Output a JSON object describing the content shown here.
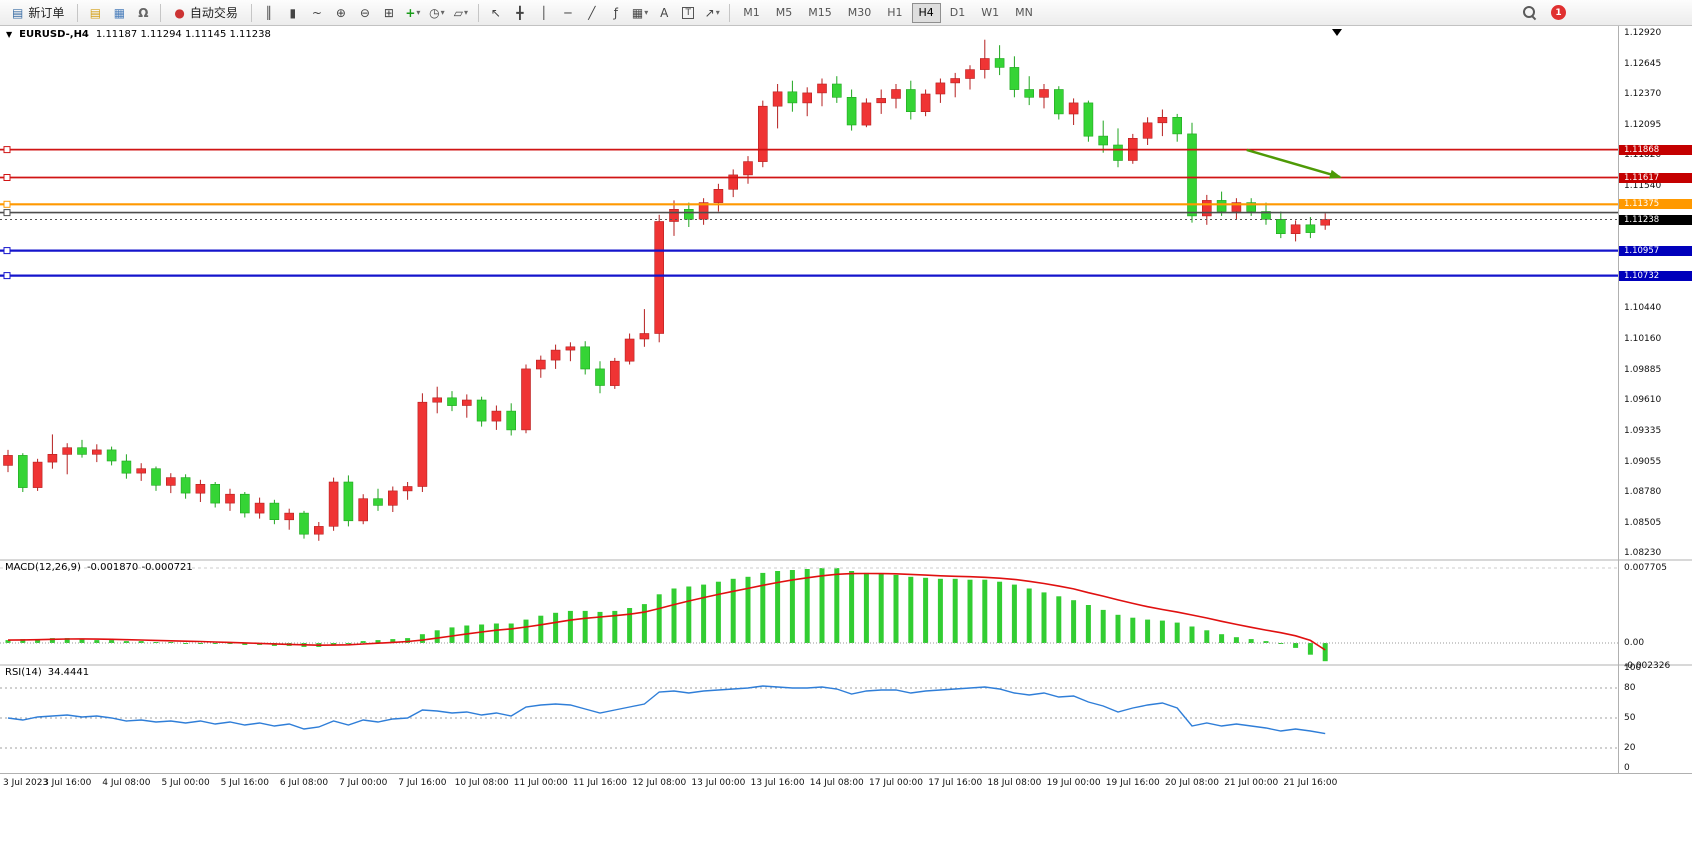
{
  "toolbar": {
    "new_order": {
      "label": "新订单",
      "icon": {
        "name": "new-order-icon",
        "glyph": "▤",
        "color": "#3b6ea5"
      }
    },
    "autotrade": {
      "label": "自动交易",
      "icon": {
        "name": "autotrade-icon",
        "glyph": "●",
        "color": "#cc3333"
      }
    },
    "window_icons": [
      {
        "name": "charts-icon",
        "glyph": "▤",
        "color": "#d4a017"
      },
      {
        "name": "data-window-icon",
        "glyph": "▦",
        "color": "#4a7ebb"
      },
      {
        "name": "support-icon",
        "glyph": "Ω",
        "color": "#666666"
      }
    ],
    "chart_tools": [
      {
        "name": "bar-chart-icon",
        "glyph": "║"
      },
      {
        "name": "candlestick-chart-icon",
        "glyph": "▮"
      },
      {
        "name": "line-chart-icon",
        "glyph": "~"
      },
      {
        "name": "zoom-in-icon",
        "glyph": "⊕"
      },
      {
        "name": "zoom-out-icon",
        "glyph": "⊖"
      },
      {
        "name": "tile-windows-icon",
        "glyph": "⊞"
      },
      {
        "name": "indicators-icon",
        "glyph": "+",
        "color": "#1a9c1a",
        "caret": true
      },
      {
        "name": "periods-icon",
        "glyph": "◷",
        "caret": true
      },
      {
        "name": "templates-icon",
        "glyph": "▱",
        "caret": true
      }
    ],
    "drawing_tools": [
      {
        "name": "cursor-icon",
        "glyph": "↖"
      },
      {
        "name": "crosshair-icon",
        "glyph": "╋"
      },
      {
        "name": "vertical-line-tool-icon",
        "glyph": "│"
      },
      {
        "name": "horizontal-line-tool-icon",
        "glyph": "─"
      },
      {
        "name": "trendline-tool-icon",
        "glyph": "╱"
      },
      {
        "name": "fibonacci-tool-icon",
        "glyph": "ƒ"
      },
      {
        "name": "shapes-tool-icon",
        "glyph": "▦",
        "caret": true
      },
      {
        "name": "text-tool-icon",
        "glyph": "A"
      },
      {
        "name": "text-label-tool-icon",
        "glyph": "T",
        "boxed": true
      },
      {
        "name": "arrows-tool-icon",
        "glyph": "↗",
        "caret": true
      }
    ],
    "timeframes": [
      "M1",
      "M5",
      "M15",
      "M30",
      "H1",
      "H4",
      "D1",
      "W1",
      "MN"
    ],
    "active_timeframe": "H4",
    "notification_count": "1"
  },
  "chart": {
    "title": "EURUSD-,H4",
    "ohlc_text": "1.11187 1.11294 1.11145 1.11238"
  },
  "price_lines": [
    {
      "name": "red-resistance-line-1",
      "price": 1.11868,
      "color": "#d01414",
      "width": 1.8,
      "style": "solid",
      "handle": true,
      "tag": "1.11868",
      "tag_bg": "#c40000"
    },
    {
      "name": "red-resistance-line-2",
      "price": 1.11617,
      "color": "#d01414",
      "width": 1.8,
      "style": "solid",
      "handle": true,
      "tag": "1.11617",
      "tag_bg": "#c40000"
    },
    {
      "name": "orange-pivot-line",
      "price": 1.11375,
      "color": "#ff9900",
      "width": 2.2,
      "style": "solid",
      "handle": true,
      "tag": "1.11375",
      "tag_bg": "#ff9900"
    },
    {
      "name": "gray-support-line",
      "price": 1.113,
      "color": "#4d4d4d",
      "width": 1.6,
      "style": "solid",
      "handle": true,
      "tag": null
    },
    {
      "name": "bid-price-line",
      "price": 1.11238,
      "color": "#555555",
      "width": 1,
      "style": "dotted",
      "handle": false,
      "tag": "1.11238",
      "tag_bg": "#000000"
    },
    {
      "name": "blue-support-line-1",
      "price": 1.10957,
      "color": "#1414cc",
      "width": 2.2,
      "style": "solid",
      "handle": true,
      "tag": "1.10957",
      "tag_bg": "#0000bb"
    },
    {
      "name": "blue-support-line-2",
      "price": 1.10732,
      "color": "#1414cc",
      "width": 2.2,
      "style": "solid",
      "handle": true,
      "tag": "1.10732",
      "tag_bg": "#0000bb"
    }
  ],
  "annotations": [
    {
      "type": "arrow",
      "name": "down-trend-arrow",
      "color": "#4e9a06",
      "from_bar": 83.7,
      "from_price": 1.11865,
      "to_bar": 90,
      "to_price": 1.11621
    }
  ],
  "chart_data": [
    {
      "type": "candlestick",
      "symbol": "EURUSD-",
      "timeframe": "H4",
      "ylim": [
        1.0823,
        1.1292
      ],
      "colors": {
        "up": "#ef3434",
        "up_edge": "#b51f1f",
        "down": "#35d435",
        "down_edge": "#1fa51f"
      },
      "axis_ticks": [
        "1.12920",
        "1.12645",
        "1.12370",
        "1.12095",
        "1.11820",
        "1.11540",
        "1.10440",
        "1.10160",
        "1.09885",
        "1.09610",
        "1.09335",
        "1.09055",
        "1.08780",
        "1.08505",
        "1.08230"
      ],
      "label_every": 4,
      "time_labels": [
        "3 Jul 2023",
        "3 Jul 16:00",
        "4 Jul 08:00",
        "5 Jul 00:00",
        "5 Jul 16:00",
        "6 Jul 08:00",
        "7 Jul 00:00",
        "7 Jul 16:00",
        "10 Jul 08:00",
        "11 Jul 00:00",
        "11 Jul 16:00",
        "12 Jul 08:00",
        "13 Jul 00:00",
        "13 Jul 16:00",
        "14 Jul 08:00",
        "17 Jul 00:00",
        "17 Jul 16:00",
        "18 Jul 08:00",
        "19 Jul 00:00",
        "19 Jul 16:00",
        "20 Jul 08:00",
        "21 Jul 00:00",
        "21 Jul 16:00"
      ],
      "ohlc": [
        [
          1.0902,
          1.0916,
          1.0896,
          1.0911
        ],
        [
          1.0911,
          1.0913,
          1.0878,
          1.0882
        ],
        [
          1.0882,
          1.0908,
          1.0879,
          1.0905
        ],
        [
          1.0905,
          1.093,
          1.0899,
          1.0912
        ],
        [
          1.0912,
          1.0922,
          1.0894,
          1.0918
        ],
        [
          1.0918,
          1.0925,
          1.0909,
          1.0912
        ],
        [
          1.0912,
          1.0921,
          1.0905,
          1.0916
        ],
        [
          1.0916,
          1.0919,
          1.0902,
          1.0906
        ],
        [
          1.0906,
          1.0912,
          1.089,
          1.0895
        ],
        [
          1.0895,
          1.0904,
          1.0888,
          1.0899
        ],
        [
          1.0899,
          1.0901,
          1.0879,
          1.0884
        ],
        [
          1.0884,
          1.0895,
          1.0877,
          1.0891
        ],
        [
          1.0891,
          1.0894,
          1.0872,
          1.0877
        ],
        [
          1.0877,
          1.0889,
          1.0869,
          1.0885
        ],
        [
          1.0885,
          1.0887,
          1.0864,
          1.0868
        ],
        [
          1.0868,
          1.0881,
          1.0861,
          1.0876
        ],
        [
          1.0876,
          1.0878,
          1.0855,
          1.0859
        ],
        [
          1.0859,
          1.0873,
          1.0854,
          1.0868
        ],
        [
          1.0868,
          1.0871,
          1.0849,
          1.0853
        ],
        [
          1.0853,
          1.0863,
          1.0844,
          1.0859
        ],
        [
          1.0859,
          1.0861,
          1.0836,
          1.084
        ],
        [
          1.084,
          1.0851,
          1.0834,
          1.0847
        ],
        [
          1.0847,
          1.0891,
          1.0843,
          1.0887
        ],
        [
          1.0887,
          1.0893,
          1.0847,
          1.0852
        ],
        [
          1.0852,
          1.0876,
          1.0849,
          1.0872
        ],
        [
          1.0872,
          1.0881,
          1.0861,
          1.0866
        ],
        [
          1.0866,
          1.0883,
          1.086,
          1.0879
        ],
        [
          1.0879,
          1.0887,
          1.0871,
          1.0883
        ],
        [
          1.0883,
          1.0967,
          1.0878,
          1.0959
        ],
        [
          1.0959,
          1.0973,
          1.0949,
          1.0963
        ],
        [
          1.0963,
          1.0969,
          1.0951,
          1.0956
        ],
        [
          1.0956,
          1.0966,
          1.0945,
          1.0961
        ],
        [
          1.0961,
          1.0964,
          1.0937,
          1.0942
        ],
        [
          1.0942,
          1.0956,
          1.0934,
          1.0951
        ],
        [
          1.0951,
          1.0958,
          1.0929,
          1.0934
        ],
        [
          1.0934,
          1.0993,
          1.0931,
          1.0989
        ],
        [
          1.0989,
          1.1001,
          1.0981,
          1.0997
        ],
        [
          1.0997,
          1.1011,
          1.0989,
          1.1006
        ],
        [
          1.1006,
          1.1013,
          1.0996,
          1.1009
        ],
        [
          1.1009,
          1.1014,
          1.0984,
          1.0989
        ],
        [
          1.0989,
          1.0996,
          1.0967,
          1.0974
        ],
        [
          1.0974,
          1.0999,
          1.0971,
          1.0996
        ],
        [
          1.0996,
          1.1021,
          1.0993,
          1.1016
        ],
        [
          1.1016,
          1.1043,
          1.1009,
          1.1021
        ],
        [
          1.1021,
          1.1128,
          1.1013,
          1.1122
        ],
        [
          1.1122,
          1.1141,
          1.1109,
          1.1133
        ],
        [
          1.1133,
          1.1139,
          1.1117,
          1.1124
        ],
        [
          1.1124,
          1.1143,
          1.1119,
          1.1139
        ],
        [
          1.1139,
          1.1156,
          1.1131,
          1.1151
        ],
        [
          1.1151,
          1.1169,
          1.1144,
          1.1164
        ],
        [
          1.1164,
          1.1181,
          1.1156,
          1.1176
        ],
        [
          1.1176,
          1.1231,
          1.1171,
          1.1226
        ],
        [
          1.1226,
          1.1246,
          1.1206,
          1.1239
        ],
        [
          1.1239,
          1.1249,
          1.1221,
          1.1229
        ],
        [
          1.1229,
          1.1243,
          1.1217,
          1.1238
        ],
        [
          1.1238,
          1.1251,
          1.1226,
          1.1246
        ],
        [
          1.1246,
          1.1253,
          1.1229,
          1.1234
        ],
        [
          1.1234,
          1.1241,
          1.1204,
          1.1209
        ],
        [
          1.1209,
          1.1233,
          1.1207,
          1.1229
        ],
        [
          1.1229,
          1.1241,
          1.1219,
          1.1233
        ],
        [
          1.1233,
          1.1246,
          1.1224,
          1.1241
        ],
        [
          1.1241,
          1.1249,
          1.1214,
          1.1221
        ],
        [
          1.1221,
          1.1241,
          1.1217,
          1.1237
        ],
        [
          1.1237,
          1.1251,
          1.1229,
          1.1247
        ],
        [
          1.1247,
          1.1256,
          1.1234,
          1.1251
        ],
        [
          1.1251,
          1.1263,
          1.1241,
          1.1259
        ],
        [
          1.1259,
          1.1286,
          1.1251,
          1.1269
        ],
        [
          1.1269,
          1.1281,
          1.1254,
          1.1261
        ],
        [
          1.1261,
          1.1271,
          1.1234,
          1.1241
        ],
        [
          1.1241,
          1.1253,
          1.1227,
          1.1234
        ],
        [
          1.1234,
          1.1246,
          1.1224,
          1.1241
        ],
        [
          1.1241,
          1.1244,
          1.1214,
          1.1219
        ],
        [
          1.1219,
          1.1233,
          1.1209,
          1.1229
        ],
        [
          1.1229,
          1.1231,
          1.1194,
          1.1199
        ],
        [
          1.1199,
          1.1213,
          1.1184,
          1.1191
        ],
        [
          1.1191,
          1.1206,
          1.1171,
          1.1177
        ],
        [
          1.1177,
          1.1201,
          1.1174,
          1.1197
        ],
        [
          1.1197,
          1.1216,
          1.1191,
          1.1211
        ],
        [
          1.1211,
          1.1223,
          1.1199,
          1.1216
        ],
        [
          1.1216,
          1.1219,
          1.1194,
          1.1201
        ],
        [
          1.1201,
          1.1211,
          1.1121,
          1.1127
        ],
        [
          1.1127,
          1.1146,
          1.1119,
          1.1141
        ],
        [
          1.1141,
          1.1149,
          1.1127,
          1.1131
        ],
        [
          1.1131,
          1.1143,
          1.1124,
          1.1139
        ],
        [
          1.1139,
          1.1143,
          1.1127,
          1.1131
        ],
        [
          1.1131,
          1.1139,
          1.1119,
          1.1124
        ],
        [
          1.1124,
          1.1131,
          1.1107,
          1.1111
        ],
        [
          1.1111,
          1.1123,
          1.1104,
          1.1119
        ],
        [
          1.1119,
          1.1126,
          1.1107,
          1.1112
        ],
        [
          1.11187,
          1.11294,
          1.11145,
          1.11238
        ]
      ]
    },
    {
      "type": "bar",
      "name": "MACD",
      "title": "MACD(12,26,9)",
      "value_text": "-0.001870 -0.000721",
      "colors": {
        "histogram": "#32cd32",
        "signal": "#e01010"
      },
      "axis_ticks": [
        {
          "label": "0.007705",
          "value": 0.007705
        },
        {
          "label": "0.00",
          "value": 0
        },
        {
          "label": "-0.002326",
          "value": -0.002326
        }
      ],
      "values": [
        0.0003,
        0.0004,
        0.0004,
        0.0005,
        0.0005,
        0.0004,
        0.0003,
        0.0003,
        0.0002,
        0.0002,
        0.0001,
        0.0001,
        0,
        0,
        -0.0001,
        -0.0001,
        -0.0002,
        -0.0002,
        -0.0003,
        -0.0003,
        -0.0004,
        -0.0004,
        -0.0002,
        0,
        0.0002,
        0.0003,
        0.0004,
        0.0005,
        0.0009,
        0.0013,
        0.0016,
        0.0018,
        0.0019,
        0.002,
        0.002,
        0.0024,
        0.0028,
        0.0031,
        0.0033,
        0.0033,
        0.0032,
        0.0033,
        0.0036,
        0.004,
        0.005,
        0.0056,
        0.0058,
        0.006,
        0.0063,
        0.0066,
        0.0068,
        0.0072,
        0.0074,
        0.0075,
        0.0076,
        0.0077,
        0.0077,
        0.0074,
        0.0072,
        0.0071,
        0.007,
        0.0068,
        0.0067,
        0.0066,
        0.0066,
        0.0065,
        0.0065,
        0.0063,
        0.006,
        0.0056,
        0.0052,
        0.0048,
        0.0044,
        0.0039,
        0.0034,
        0.0029,
        0.0026,
        0.0024,
        0.0023,
        0.0021,
        0.0017,
        0.0013,
        0.0009,
        0.0006,
        0.0004,
        0.0002,
        0,
        -0.0005,
        -0.0012,
        -0.00187
      ],
      "signal": [
        0.0003,
        0.00032,
        0.00034,
        0.00038,
        0.00041,
        0.00042,
        0.0004,
        0.00038,
        0.00034,
        0.00031,
        0.00027,
        0.00023,
        0.00019,
        0.00015,
        0.0001,
        6e-05,
        1e-05,
        -4e-05,
        -9e-05,
        -0.00014,
        -0.00019,
        -0.00023,
        -0.00022,
        -0.00018,
        -0.0001,
        -2e-05,
        6e-05,
        0.00015,
        0.0003,
        0.0005,
        0.00072,
        0.00094,
        0.00113,
        0.00131,
        0.00145,
        0.00164,
        0.00187,
        0.00212,
        0.00235,
        0.00254,
        0.00267,
        0.0028,
        0.00296,
        0.00317,
        0.00354,
        0.00395,
        0.00432,
        0.00466,
        0.00499,
        0.00531,
        0.00561,
        0.00593,
        0.00622,
        0.00648,
        0.0067,
        0.0069,
        0.00706,
        0.00713,
        0.00714,
        0.00713,
        0.00711,
        0.00705,
        0.00698,
        0.0069,
        0.00685,
        0.00681,
        0.00675,
        0.00666,
        0.00653,
        0.00634,
        0.00611,
        0.00585,
        0.00556,
        0.00517,
        0.00482,
        0.00443,
        0.00407,
        0.00373,
        0.00344,
        0.00317,
        0.00288,
        0.00257,
        0.00223,
        0.00191,
        0.00161,
        0.00133,
        0.00106,
        0.00074,
        0.00027,
        -0.00072
      ]
    },
    {
      "type": "line",
      "name": "RSI",
      "title": "RSI(14)",
      "value_text": "34.4441",
      "color": "#2f7ed8",
      "levels": [
        80,
        50,
        20
      ],
      "axis_ticks": [
        {
          "label": "100",
          "value": 100
        },
        {
          "label": "80",
          "value": 80
        },
        {
          "label": "50",
          "value": 50
        },
        {
          "label": "20",
          "value": 20
        },
        {
          "label": "0",
          "value": 0
        }
      ],
      "values": [
        50,
        48,
        51,
        52,
        53,
        51,
        52,
        50,
        47,
        48,
        46,
        47,
        45,
        47,
        44,
        46,
        43,
        45,
        42,
        44,
        39,
        41,
        47,
        43,
        48,
        46,
        49,
        50,
        58,
        57,
        55,
        56,
        53,
        55,
        52,
        61,
        63,
        64,
        63,
        59,
        55,
        58,
        61,
        64,
        76,
        77,
        75,
        77,
        78,
        79,
        80,
        82,
        81,
        80,
        80,
        81,
        79,
        74,
        77,
        78,
        78,
        75,
        77,
        78,
        79,
        80,
        81,
        79,
        75,
        73,
        75,
        71,
        72,
        66,
        62,
        56,
        60,
        63,
        65,
        60,
        42,
        45,
        42,
        44,
        42,
        40,
        37,
        39,
        37,
        34.44
      ]
    }
  ]
}
